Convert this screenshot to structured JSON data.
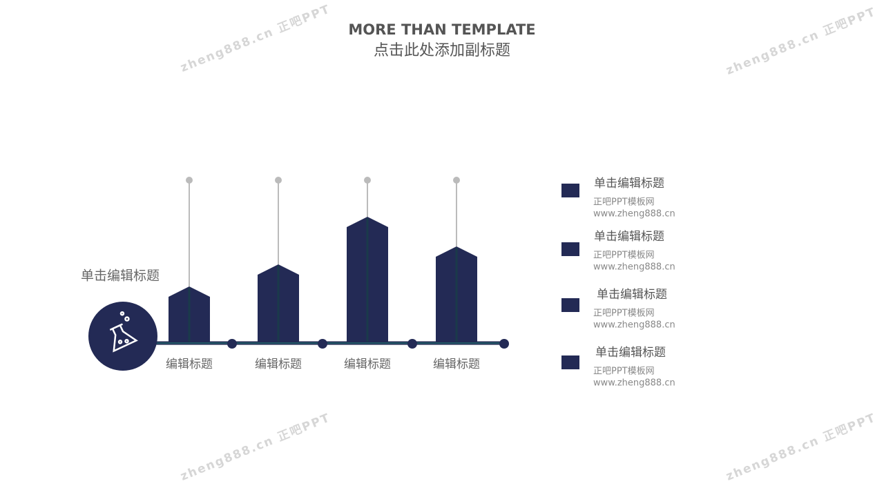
{
  "header": {
    "title": "MORE THAN TEMPLATE",
    "subtitle": "点击此处添加副标题"
  },
  "chart_data": {
    "type": "bar",
    "label": "单击编辑标题",
    "categories": [
      "编辑标题",
      "编辑标题",
      "编辑标题",
      "编辑标题"
    ],
    "values": [
      80,
      112,
      181,
      138
    ],
    "color": "#232a55"
  },
  "legend": [
    {
      "title": "单击编辑标题",
      "line1": "正吧PPT模板网",
      "line2": "www.zheng888.cn"
    },
    {
      "title": "单击编辑标题",
      "line1": "正吧PPT模板网",
      "line2": "www.zheng888.cn"
    },
    {
      "title": "单击编辑标题",
      "line1": "正吧PPT模板网",
      "line2": "www.zheng888.cn"
    },
    {
      "title": "单击编辑标题",
      "line1": "正吧PPT模板网",
      "line2": "www.zheng888.cn"
    }
  ],
  "watermark": "zheng888.cn 正吧PPT"
}
